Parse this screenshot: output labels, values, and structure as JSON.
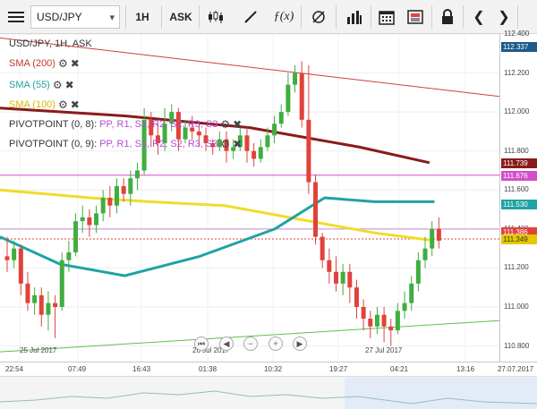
{
  "toolbar": {
    "symbol": "USD/JPY",
    "timeframe": "1H",
    "price_side": "ASK",
    "icons": [
      "menu-icon",
      "symbol-dropdown-caret",
      "candle-type-icon",
      "draw-icon",
      "function-icon",
      "settings-icon",
      "bar-chart-icon",
      "calendar-icon",
      "news-icon",
      "lock-icon",
      "prev-icon",
      "next-icon"
    ]
  },
  "chart": {
    "title": "USD/JPY, 1H, ASK",
    "indicators": [
      {
        "label": "SMA (200)",
        "color": "#8b1a1a"
      },
      {
        "label": "SMA (55)",
        "color": "#1fa3a3"
      },
      {
        "label": "SMA (100)",
        "color": "#e6c800"
      }
    ],
    "pivot1": {
      "prefix": "PIVOTPOINT (0, 8):",
      "pp": "PP,",
      "r1": "R1,",
      "s1": "S1,",
      "r2": "R2,",
      "s2": "S2,",
      "r3": "R3,",
      "s3": "S3"
    },
    "pivot2": {
      "prefix": "PIVOTPOINT (0, 9):",
      "pp": "PP,",
      "r1": "R1,",
      "s1": "S1,",
      "r2": "R2,",
      "s2": "S2,",
      "r3": "R3,",
      "s3": "S3"
    },
    "price_ticks": [
      "112.400",
      "112.200",
      "112.000",
      "111.800",
      "111.600",
      "111.400",
      "111.200",
      "111.000",
      "110.800"
    ],
    "price_tags": {
      "top": "112.337",
      "sma200": "111.739",
      "pivot": "111.676",
      "sma55": "111.530",
      "current": "111.386",
      "sma100": "111.349"
    },
    "time_labels": [
      "22:54",
      "07:49",
      "16:43",
      "01:38",
      "10:32",
      "19:27",
      "04:21",
      "13:16"
    ],
    "right_date": "27.07.2017",
    "date_markers": [
      "25 Jul 2017",
      "26 Jul 2017",
      "27 Jul 2017"
    ],
    "colors": {
      "up": "#3fae3f",
      "down": "#e0423c",
      "pivot_magenta": "#d44ec8",
      "trend_green": "#5dc04a",
      "trend_red": "#d23c3c"
    }
  },
  "chart_data": {
    "type": "line",
    "title": "USD/JPY, 1H, ASK",
    "ylim": [
      110.72,
      112.4
    ],
    "candles": [
      [
        111.26,
        111.24,
        111.36,
        111.18
      ],
      [
        111.24,
        111.3,
        111.34,
        111.2
      ],
      [
        111.3,
        111.12,
        111.32,
        111.06
      ],
      [
        111.12,
        111.02,
        111.18,
        110.98
      ],
      [
        111.02,
        111.06,
        111.1,
        110.96
      ],
      [
        111.06,
        110.96,
        111.1,
        110.9
      ],
      [
        110.96,
        111.02,
        111.08,
        110.88
      ],
      [
        111.02,
        111.0,
        111.06,
        110.84
      ],
      [
        111.0,
        111.24,
        111.28,
        110.98
      ],
      [
        111.24,
        111.28,
        111.34,
        111.18
      ],
      [
        111.28,
        111.44,
        111.48,
        111.26
      ],
      [
        111.44,
        111.46,
        111.52,
        111.38
      ],
      [
        111.46,
        111.42,
        111.5,
        111.36
      ],
      [
        111.42,
        111.48,
        111.52,
        111.38
      ],
      [
        111.48,
        111.56,
        111.6,
        111.44
      ],
      [
        111.56,
        111.52,
        111.62,
        111.46
      ],
      [
        111.52,
        111.62,
        111.66,
        111.48
      ],
      [
        111.62,
        111.58,
        111.66,
        111.54
      ],
      [
        111.58,
        111.66,
        111.7,
        111.52
      ],
      [
        111.66,
        111.7,
        111.74,
        111.6
      ],
      [
        111.7,
        111.96,
        112.02,
        111.68
      ],
      [
        111.96,
        111.88,
        112.0,
        111.82
      ],
      [
        111.88,
        111.84,
        111.94,
        111.78
      ],
      [
        111.84,
        111.94,
        112.02,
        111.8
      ],
      [
        111.94,
        112.0,
        112.04,
        111.9
      ],
      [
        112.0,
        111.86,
        112.02,
        111.8
      ],
      [
        111.86,
        111.92,
        111.96,
        111.84
      ],
      [
        111.92,
        111.9,
        111.98,
        111.86
      ],
      [
        111.9,
        111.88,
        111.94,
        111.82
      ],
      [
        111.88,
        111.84,
        111.92,
        111.8
      ],
      [
        111.84,
        111.82,
        111.86,
        111.78
      ],
      [
        111.82,
        111.86,
        111.9,
        111.8
      ],
      [
        111.86,
        111.8,
        111.9,
        111.74
      ],
      [
        111.8,
        111.82,
        111.86,
        111.76
      ],
      [
        111.82,
        111.88,
        111.92,
        111.8
      ],
      [
        111.88,
        111.8,
        111.92,
        111.74
      ],
      [
        111.8,
        111.76,
        111.84,
        111.72
      ],
      [
        111.76,
        111.82,
        111.86,
        111.74
      ],
      [
        111.82,
        111.88,
        111.92,
        111.8
      ],
      [
        111.88,
        111.94,
        111.98,
        111.84
      ],
      [
        111.94,
        112.0,
        112.04,
        111.92
      ],
      [
        112.0,
        112.14,
        112.2,
        111.98
      ],
      [
        112.14,
        112.2,
        112.24,
        112.1
      ],
      [
        112.2,
        111.96,
        112.26,
        111.92
      ],
      [
        111.96,
        111.64,
        112.24,
        111.58
      ],
      [
        111.64,
        111.36,
        111.68,
        111.32
      ],
      [
        111.36,
        111.24,
        111.38,
        111.2
      ],
      [
        111.24,
        111.18,
        111.3,
        111.12
      ],
      [
        111.18,
        111.12,
        111.26,
        111.08
      ],
      [
        111.12,
        111.18,
        111.22,
        111.06
      ],
      [
        111.18,
        111.1,
        111.22,
        111.02
      ],
      [
        111.1,
        111.0,
        111.14,
        110.94
      ],
      [
        111.0,
        110.94,
        111.04,
        110.88
      ],
      [
        110.94,
        110.9,
        110.98,
        110.84
      ],
      [
        110.9,
        110.96,
        111.0,
        110.86
      ],
      [
        110.96,
        110.9,
        111.0,
        110.82
      ],
      [
        110.9,
        110.88,
        110.94,
        110.8
      ],
      [
        110.88,
        110.98,
        111.02,
        110.86
      ],
      [
        110.98,
        111.02,
        111.08,
        110.94
      ],
      [
        111.02,
        111.12,
        111.16,
        110.98
      ],
      [
        111.12,
        111.24,
        111.28,
        111.08
      ],
      [
        111.24,
        111.3,
        111.36,
        111.2
      ],
      [
        111.3,
        111.4,
        111.44,
        111.26
      ],
      [
        111.4,
        111.34,
        111.46,
        111.3
      ]
    ],
    "sma200": [
      [
        0,
        112.02
      ],
      [
        0.25,
        111.98
      ],
      [
        0.5,
        111.92
      ],
      [
        0.72,
        111.82
      ],
      [
        0.86,
        111.74
      ]
    ],
    "sma55": [
      [
        0,
        111.36
      ],
      [
        0.12,
        111.22
      ],
      [
        0.25,
        111.16
      ],
      [
        0.4,
        111.26
      ],
      [
        0.55,
        111.4
      ],
      [
        0.65,
        111.56
      ],
      [
        0.75,
        111.54
      ],
      [
        0.87,
        111.54
      ]
    ],
    "sma100": [
      [
        0,
        111.6
      ],
      [
        0.18,
        111.56
      ],
      [
        0.3,
        111.54
      ],
      [
        0.45,
        111.52
      ],
      [
        0.62,
        111.44
      ],
      [
        0.75,
        111.38
      ],
      [
        0.87,
        111.34
      ]
    ]
  }
}
